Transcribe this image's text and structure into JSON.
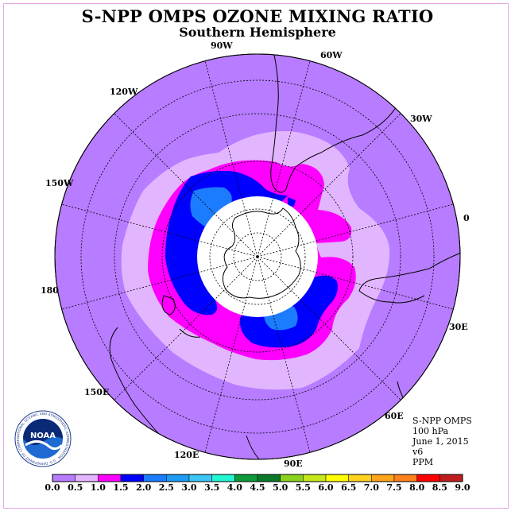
{
  "title": "S-NPP OMPS OZONE MIXING RATIO",
  "subtitle": "Southern Hemisphere",
  "longitude_labels": [
    "90W",
    "60W",
    "30W",
    "0",
    "30E",
    "60E",
    "90E",
    "120E",
    "150E",
    "180",
    "150W",
    "120W"
  ],
  "info": {
    "instrument": "S-NPP OMPS",
    "pressure": "100 hPa",
    "date": "June 1, 2015",
    "version": "v6",
    "units": "PPM"
  },
  "logo": {
    "text": "NOAA",
    "ring_text": "NATIONAL OCEANIC AND ATMOSPHERIC ADMINISTRATION · U.S. DEPARTMENT OF COMMERCE"
  },
  "colorbar": {
    "ticks": [
      "0.0",
      "0.5",
      "1.0",
      "1.5",
      "2.0",
      "2.5",
      "3.0",
      "3.5",
      "4.0",
      "4.5",
      "5.0",
      "5.5",
      "6.0",
      "6.5",
      "7.0",
      "7.5",
      "8.0",
      "8.5",
      "9.0"
    ],
    "colors": [
      "#b77cff",
      "#e2b5ff",
      "#ff00ff",
      "#0000ff",
      "#1c7cff",
      "#1e9cf5",
      "#3cc6f5",
      "#22f5d2",
      "#0f9a3c",
      "#0a7a2a",
      "#8ad21e",
      "#c8e61e",
      "#ffff00",
      "#ffd21e",
      "#ffa51e",
      "#ff821e",
      "#ff0000",
      "#c01e1e"
    ]
  },
  "map_colors": {
    "background": "#b77cff",
    "band_0_5": "#e2b5ff",
    "band_1_0": "#ff00ff",
    "band_1_5": "#0000ff",
    "band_2_0": "#1c7cff",
    "band_2_5": "#1e9cf5",
    "polar_mask": "#ffffff"
  }
}
